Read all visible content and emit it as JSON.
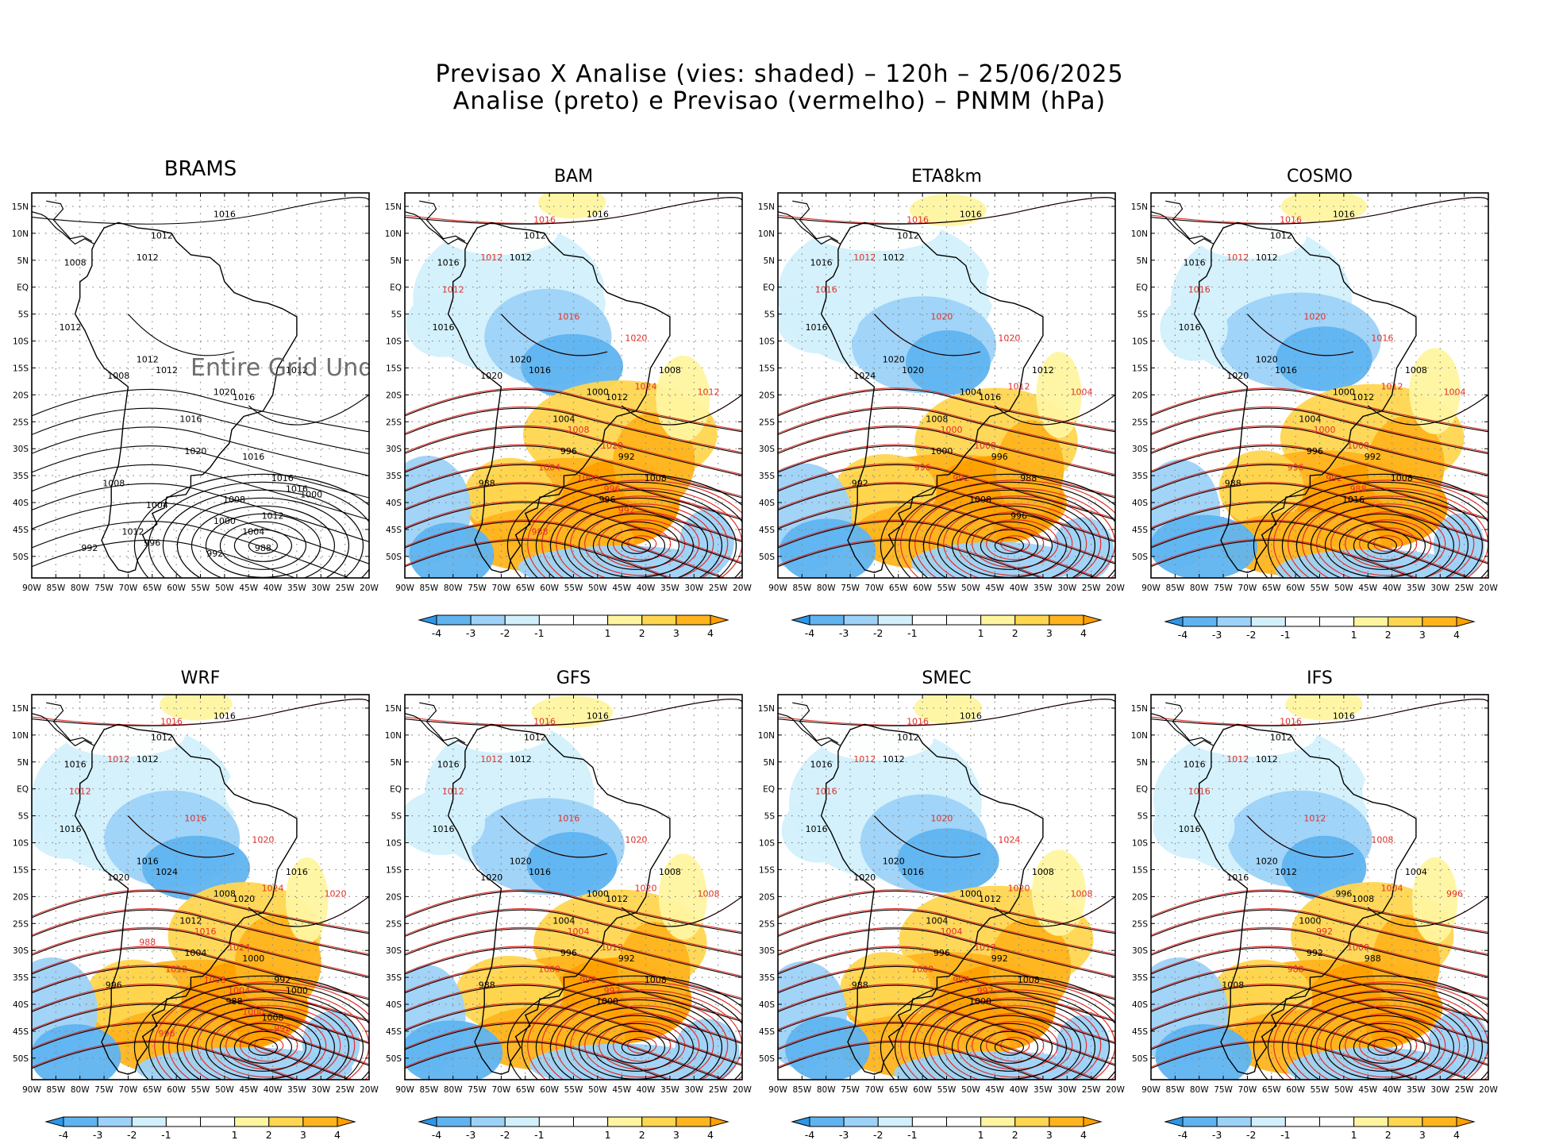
{
  "title_line1": "Previsao X Analise (vies: shaded) – 120h – 25/06/2025",
  "title_line2": "Analise (preto) e Previsao (vermelho) – PNMM (hPa)",
  "lat_labels": [
    "15N",
    "10N",
    "5N",
    "EQ",
    "5S",
    "10S",
    "15S",
    "20S",
    "25S",
    "30S",
    "35S",
    "40S",
    "45S",
    "50S"
  ],
  "lon_labels": [
    "90W",
    "85W",
    "80W",
    "75W",
    "70W",
    "65W",
    "60W",
    "55W",
    "50W",
    "45W",
    "40W",
    "35W",
    "30W",
    "25W",
    "20W"
  ],
  "colorbar": {
    "labels": [
      "-4",
      "-3",
      "-2",
      "-1",
      "1",
      "2",
      "3",
      "4"
    ],
    "colors": [
      "#2d96e6",
      "#5fb4f0",
      "#9dd2f8",
      "#d2f0fc",
      "#ffffff",
      "#fff5a0",
      "#ffd650",
      "#ffb41e",
      "#ffa000"
    ]
  },
  "colors": {
    "analysis": "#000000",
    "forecast": "#e0302a"
  },
  "brams_message": "Entire Grid Undefined",
  "panels": [
    {
      "name": "BRAMS",
      "colorbar": false,
      "bias": false,
      "analysis_labels": [
        "1016",
        "1012",
        "1012",
        "1008",
        "1012",
        "1012",
        "1008",
        "1012",
        "1016",
        "1012",
        "1016",
        "1020",
        "1020",
        "1016",
        "1008",
        "1016",
        "1008",
        "1012",
        "1016",
        "1004",
        "1000",
        "1004",
        "1012",
        "996",
        "992",
        "992",
        "1000",
        "988"
      ],
      "forecast_labels": []
    },
    {
      "name": "BAM",
      "colorbar": true,
      "bias": true,
      "analysis_labels": [
        "1016",
        "1012",
        "1012",
        "1016",
        "1016",
        "1020",
        "1020",
        "1016",
        "1012",
        "1008",
        "1004",
        "1000",
        "996",
        "992",
        "988",
        "1008",
        "996"
      ],
      "forecast_labels": [
        "1016",
        "1012",
        "1012",
        "1016",
        "1020",
        "1024",
        "1020",
        "1012",
        "1008",
        "1004",
        "1000",
        "996",
        "992",
        "988"
      ]
    },
    {
      "name": "ETA8km",
      "colorbar": true,
      "bias": true,
      "analysis_labels": [
        "1016",
        "1012",
        "1012",
        "1016",
        "1016",
        "1020",
        "1024",
        "1020",
        "1016",
        "1012",
        "1008",
        "1004",
        "1000",
        "996",
        "992",
        "988",
        "1008",
        "996"
      ],
      "forecast_labels": [
        "1016",
        "1012",
        "1016",
        "1020",
        "1020",
        "1012",
        "1008",
        "1004",
        "1000",
        "996",
        "992"
      ]
    },
    {
      "name": "COSMO",
      "colorbar": true,
      "bias": true,
      "analysis_labels": [
        "1016",
        "1012",
        "1012",
        "1016",
        "1016",
        "1020",
        "1020",
        "1016",
        "1012",
        "1008",
        "1004",
        "1000",
        "996",
        "992",
        "988",
        "1008",
        "1016"
      ],
      "forecast_labels": [
        "1016",
        "1012",
        "1016",
        "1020",
        "1016",
        "1012",
        "1008",
        "1004",
        "1000",
        "996",
        "992",
        "988"
      ]
    },
    {
      "name": "WRF",
      "colorbar": true,
      "bias": true,
      "analysis_labels": [
        "1016",
        "1012",
        "1012",
        "1016",
        "1016",
        "1016",
        "1020",
        "1024",
        "1020",
        "1016",
        "1012",
        "1008",
        "1004",
        "1000",
        "996",
        "992",
        "988",
        "1008",
        "1000"
      ],
      "forecast_labels": [
        "1016",
        "1012",
        "1012",
        "1016",
        "1020",
        "1024",
        "1024",
        "1020",
        "1016",
        "1012",
        "1008",
        "1004",
        "1000",
        "996",
        "992",
        "988"
      ]
    },
    {
      "name": "GFS",
      "colorbar": true,
      "bias": true,
      "analysis_labels": [
        "1016",
        "1012",
        "1012",
        "1016",
        "1016",
        "1020",
        "1020",
        "1016",
        "1012",
        "1008",
        "1004",
        "1000",
        "996",
        "992",
        "988",
        "1008",
        "1000"
      ],
      "forecast_labels": [
        "1016",
        "1012",
        "1012",
        "1016",
        "1020",
        "1020",
        "1012",
        "1008",
        "1004",
        "1000",
        "996",
        "992"
      ]
    },
    {
      "name": "SMEC",
      "colorbar": true,
      "bias": true,
      "analysis_labels": [
        "1016",
        "1012",
        "1012",
        "1016",
        "1016",
        "1020",
        "1020",
        "1016",
        "1012",
        "1008",
        "1004",
        "1000",
        "996",
        "992",
        "988",
        "1008",
        "1000"
      ],
      "forecast_labels": [
        "1016",
        "1012",
        "1016",
        "1020",
        "1024",
        "1020",
        "1012",
        "1008",
        "1004",
        "1000",
        "996",
        "992"
      ]
    },
    {
      "name": "IFS",
      "colorbar": true,
      "bias": true,
      "analysis_labels": [
        "1016",
        "1012",
        "1012",
        "1016",
        "1016",
        "1020",
        "1016",
        "1012",
        "1008",
        "1004",
        "1000",
        "996",
        "992",
        "988",
        "1008"
      ],
      "forecast_labels": [
        "1016",
        "1012",
        "1016",
        "1012",
        "1008",
        "1004",
        "1000",
        "996",
        "992",
        "988"
      ]
    }
  ]
}
